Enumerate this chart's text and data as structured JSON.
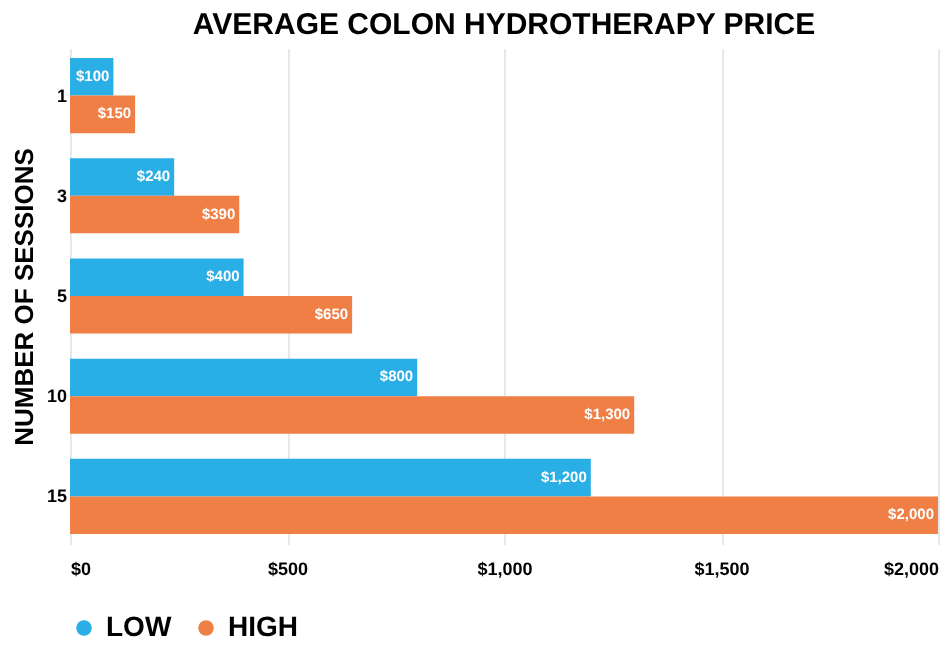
{
  "chart_data": {
    "type": "bar",
    "orientation": "horizontal",
    "title": "AVERAGE COLON HYDROTHERAPY PRICE",
    "ylabel": "NUMBER OF SESSIONS",
    "categories": [
      "1",
      "3",
      "5",
      "10",
      "15"
    ],
    "series": [
      {
        "name": "LOW",
        "color": "#29aee6",
        "values": [
          100,
          240,
          400,
          800,
          1200
        ],
        "value_labels": [
          "$100",
          "$240",
          "$400",
          "$800",
          "$1,200"
        ]
      },
      {
        "name": "HIGH",
        "color": "#ef7f45",
        "values": [
          150,
          390,
          650,
          1300,
          2000
        ],
        "value_labels": [
          "$150",
          "$390",
          "$650",
          "$1,300",
          "$2,000"
        ]
      }
    ],
    "xlim": [
      0,
      2000
    ],
    "xticks": [
      {
        "value": 0,
        "label": "$0"
      },
      {
        "value": 500,
        "label": "$500"
      },
      {
        "value": 1000,
        "label": "$1,000"
      },
      {
        "value": 1500,
        "label": "$1,500"
      },
      {
        "value": 2000,
        "label": "$2,000"
      }
    ],
    "grid": "x",
    "legend": "bottom"
  }
}
